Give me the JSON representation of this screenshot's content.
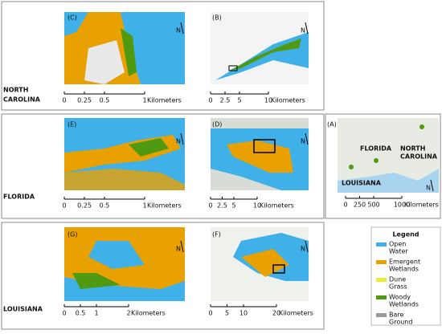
{
  "rows": [
    {
      "region": [
        "NORTH",
        "CAROLINA"
      ]
    },
    {
      "region": [
        "FLORIDA"
      ]
    },
    {
      "region": [
        "LOUISIANA"
      ]
    }
  ],
  "panels": [
    {
      "label": "(C)",
      "north": "N",
      "scale": [
        0,
        0.25,
        0.5,
        1
      ],
      "unit": "Kilometers"
    },
    {
      "label": "(B)",
      "north": "N",
      "scale": [
        0,
        2.5,
        5,
        10
      ],
      "unit": "Kilometers"
    },
    {
      "label": "(E)",
      "north": "N",
      "scale": [
        0,
        0.25,
        0.5,
        1
      ],
      "unit": "Kilometers"
    },
    {
      "label": "(D)",
      "north": "N",
      "scale": [
        0,
        2.5,
        5,
        10
      ],
      "unit": "Kilometers"
    },
    {
      "label": "(G)",
      "north": "N",
      "scale": [
        0,
        0.5,
        1,
        2
      ],
      "unit": "Kilometers"
    },
    {
      "label": "(F)",
      "north": "N",
      "scale": [
        0,
        5,
        10,
        20
      ],
      "unit": "Kilometers"
    },
    {
      "label": "(A)",
      "north": "N",
      "scale": [
        0,
        250,
        500,
        1000
      ],
      "unit": "Kilometers",
      "places": [
        [
          "FLORIDA"
        ],
        [
          "NORTH",
          "CAROLINA"
        ],
        [
          "LOUISIANA"
        ]
      ]
    }
  ],
  "legend": {
    "title": "Legend",
    "items": [
      {
        "label": [
          "Open",
          "Water"
        ],
        "color": "#3fb0e8"
      },
      {
        "label": [
          "Emergent",
          "Wetlands"
        ],
        "color": "#e8a100"
      },
      {
        "label": [
          "Dune",
          "Grass"
        ],
        "color": "#ecec3a"
      },
      {
        "label": [
          "Woody",
          "Wetlands"
        ],
        "color": "#4f9a10"
      },
      {
        "label": [
          "Bare",
          "Ground"
        ],
        "color": "#9a9a9a"
      }
    ]
  }
}
